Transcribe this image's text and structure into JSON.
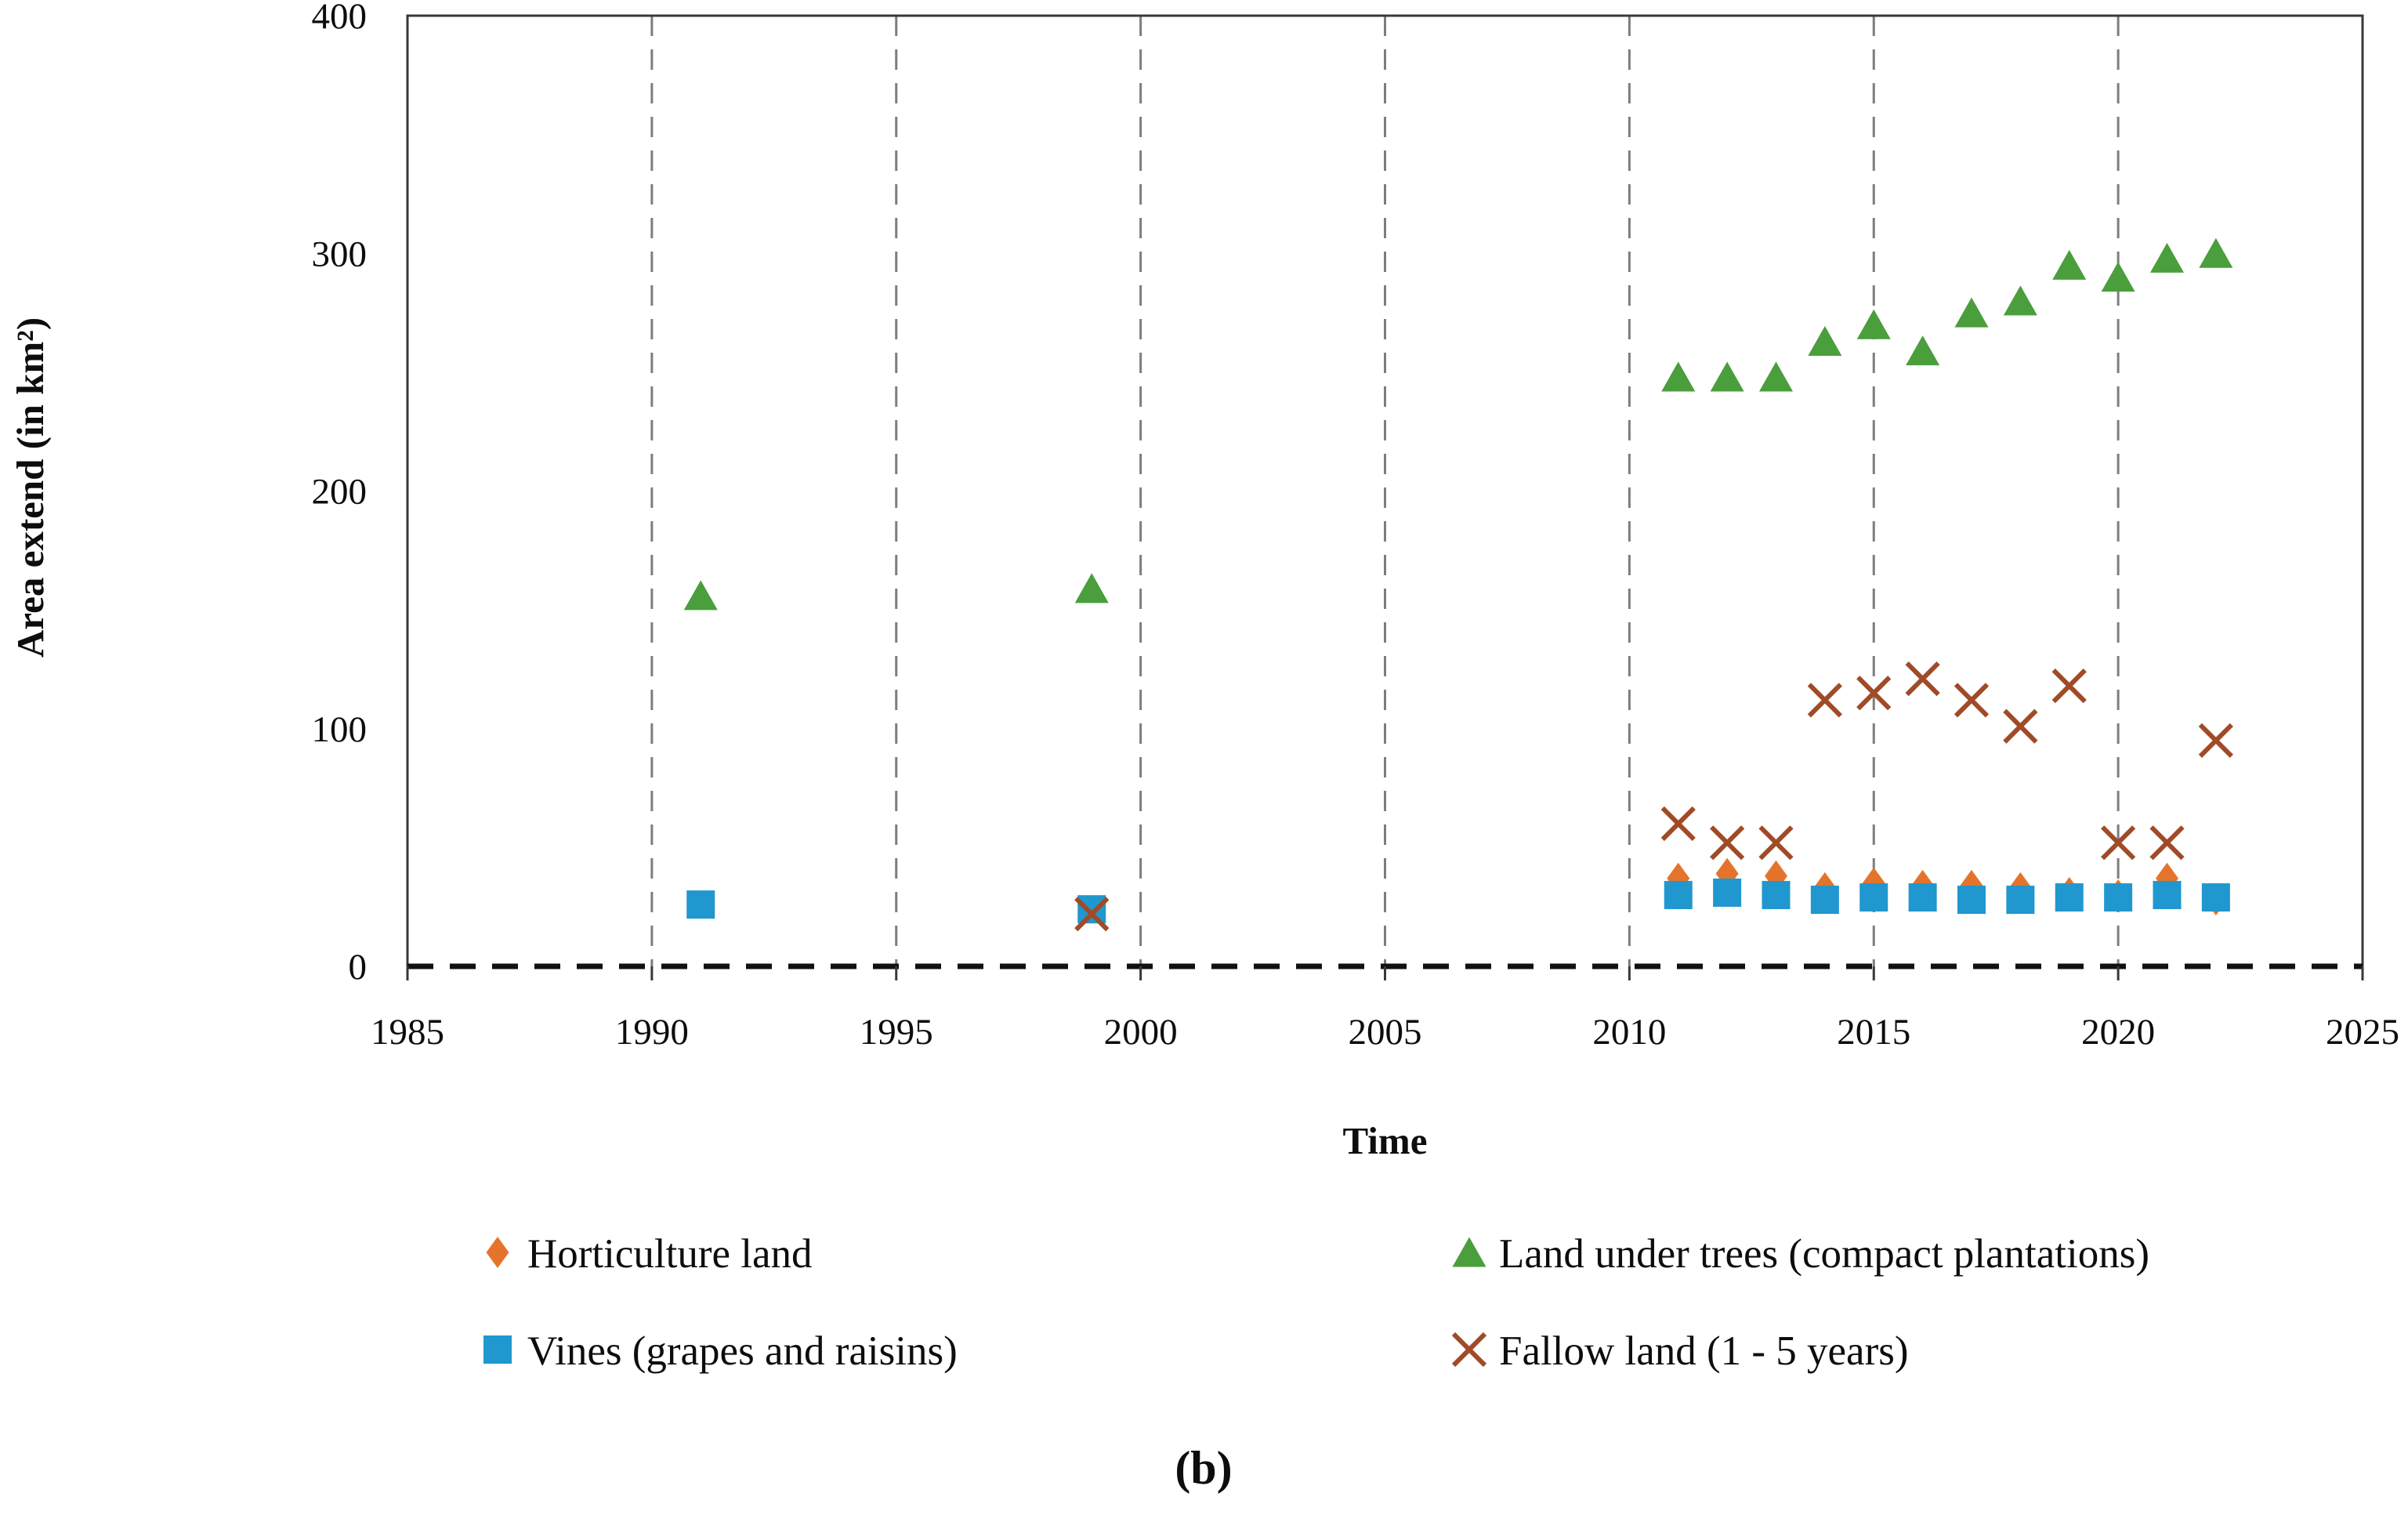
{
  "figure": {
    "caption": "(b)"
  },
  "axes": {
    "x_title": "Time",
    "y_title": "Area extend (in km²)",
    "x_ticks": [
      1985,
      1990,
      1995,
      2000,
      2005,
      2010,
      2015,
      2020,
      2025
    ],
    "y_ticks": [
      0,
      100,
      200,
      300,
      400
    ],
    "grid_years": [
      1990,
      1995,
      2000,
      2005,
      2010,
      2015,
      2020
    ],
    "x_range": [
      1985,
      2025
    ],
    "y_range": [
      0,
      400
    ]
  },
  "colors": {
    "horticulture_orange": "#e4742c",
    "trees_green": "#4a9e3c",
    "vines_blue": "#2097ce",
    "fallow_brown": "#a04b27",
    "gridline_gray": "#7d7d7d",
    "frame_dark": "#383838",
    "text_black": "#0d0d0d"
  },
  "chart_data": {
    "type": "scatter",
    "title": "",
    "xlabel": "Time",
    "ylabel": "Area extend (in km²)",
    "xlim": [
      1985,
      2025
    ],
    "ylim": [
      0,
      400
    ],
    "grid": "vertical-dashed",
    "legend_position": "bottom-two-columns",
    "series": [
      {
        "name": "Horticulture land",
        "marker": "diamond",
        "color": "#e4742c",
        "points": [
          [
            2011,
            37
          ],
          [
            2012,
            39
          ],
          [
            2013,
            38
          ],
          [
            2014,
            33
          ],
          [
            2015,
            35
          ],
          [
            2016,
            34
          ],
          [
            2017,
            34
          ],
          [
            2018,
            33
          ],
          [
            2019,
            31
          ],
          [
            2020,
            30
          ],
          [
            2021,
            37
          ],
          [
            2022,
            28
          ]
        ]
      },
      {
        "name": "Land under trees (compact plantations)",
        "marker": "triangle",
        "color": "#4a9e3c",
        "points": [
          [
            1991,
            156
          ],
          [
            1999,
            159
          ],
          [
            2011,
            248
          ],
          [
            2012,
            248
          ],
          [
            2013,
            248
          ],
          [
            2014,
            263
          ],
          [
            2015,
            270
          ],
          [
            2016,
            259
          ],
          [
            2017,
            275
          ],
          [
            2018,
            280
          ],
          [
            2019,
            295
          ],
          [
            2020,
            290
          ],
          [
            2021,
            298
          ],
          [
            2022,
            300
          ]
        ]
      },
      {
        "name": "Vines (grapes and raisins)",
        "marker": "square",
        "color": "#2097ce",
        "points": [
          [
            1991,
            26
          ],
          [
            1999,
            24
          ],
          [
            2011,
            30
          ],
          [
            2012,
            31
          ],
          [
            2013,
            30
          ],
          [
            2014,
            28
          ],
          [
            2015,
            29
          ],
          [
            2016,
            29
          ],
          [
            2017,
            28
          ],
          [
            2018,
            28
          ],
          [
            2019,
            29
          ],
          [
            2020,
            29
          ],
          [
            2021,
            30
          ],
          [
            2022,
            29
          ]
        ]
      },
      {
        "name": "Fallow land (1 - 5 years)",
        "marker": "x",
        "color": "#a04b27",
        "points": [
          [
            1999,
            22
          ],
          [
            2011,
            60
          ],
          [
            2012,
            52
          ],
          [
            2013,
            52
          ],
          [
            2014,
            112
          ],
          [
            2015,
            115
          ],
          [
            2016,
            121
          ],
          [
            2017,
            112
          ],
          [
            2018,
            101
          ],
          [
            2019,
            118
          ],
          [
            2020,
            52
          ],
          [
            2021,
            52
          ],
          [
            2022,
            95
          ]
        ]
      }
    ]
  },
  "legend": {
    "rows": [
      {
        "left_series": 0,
        "right_series": 1
      },
      {
        "left_series": 2,
        "right_series": 3
      }
    ]
  }
}
